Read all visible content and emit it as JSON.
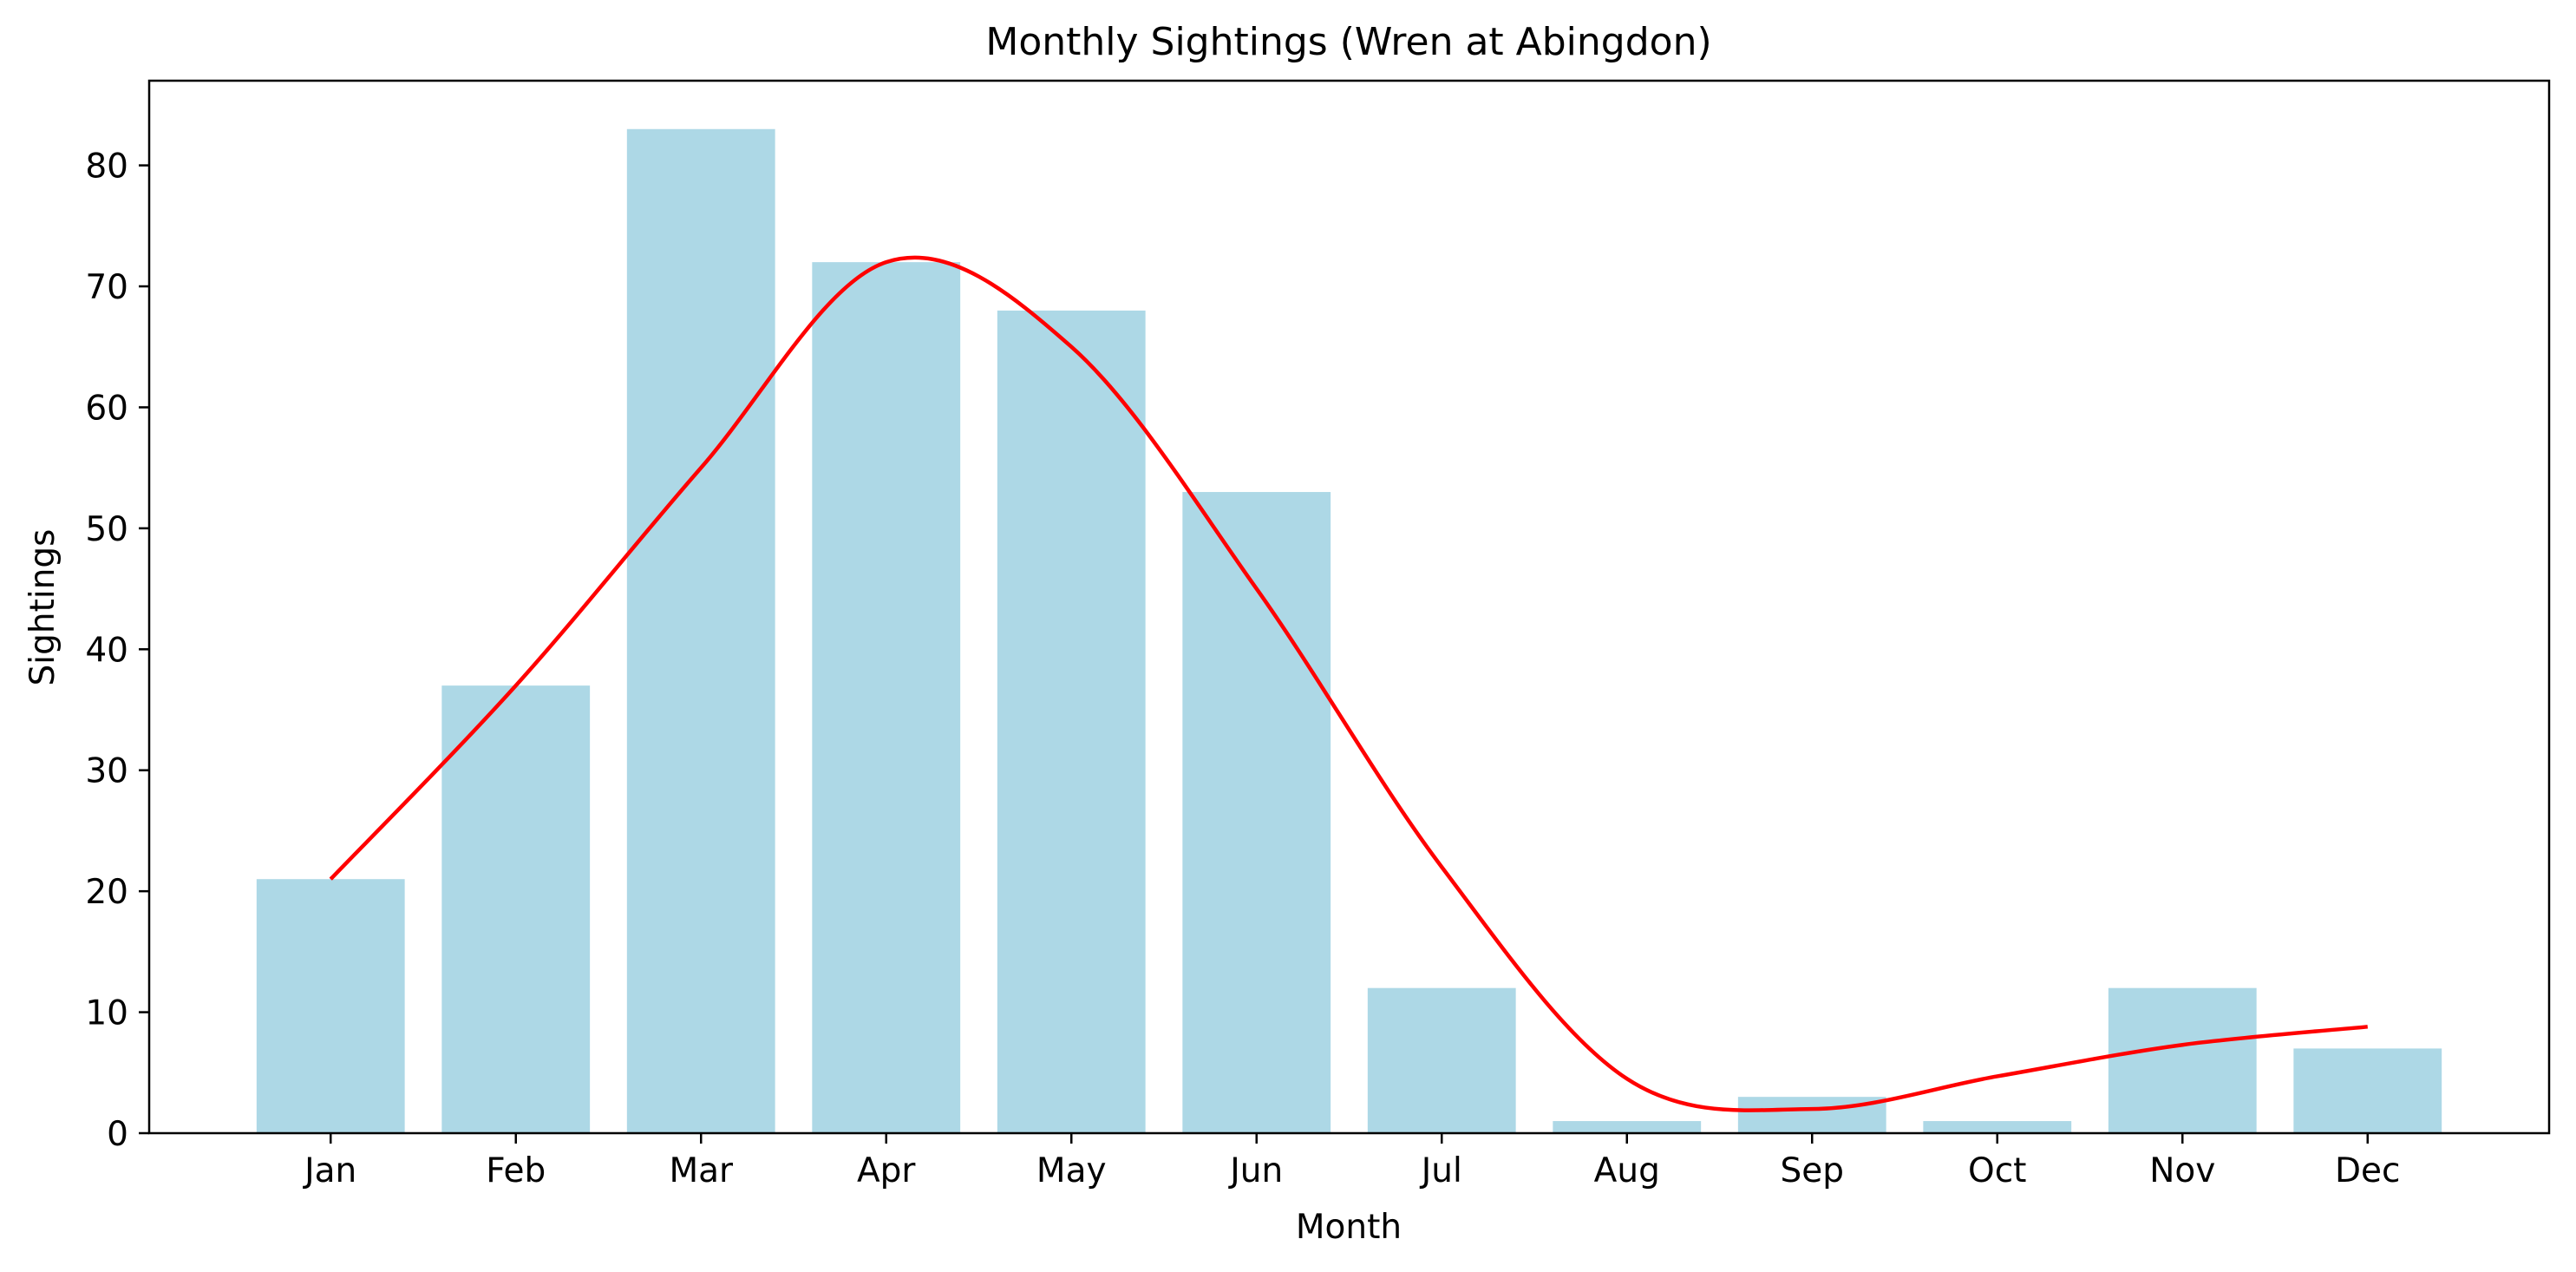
{
  "chart_data": {
    "type": "bar",
    "title": "Monthly Sightings (Wren at Abingdon)",
    "xlabel": "Month",
    "ylabel": "Sightings",
    "categories": [
      "Jan",
      "Feb",
      "Mar",
      "Apr",
      "May",
      "Jun",
      "Jul",
      "Aug",
      "Sep",
      "Oct",
      "Nov",
      "Dec"
    ],
    "values": [
      21,
      37,
      83,
      72,
      68,
      53,
      12,
      1,
      3,
      1,
      12,
      7
    ],
    "trend_line": {
      "type": "line",
      "smooth": true,
      "values": [
        21,
        37,
        55,
        72,
        65,
        45,
        22,
        4.5,
        2,
        4.7,
        7.3,
        8.8
      ]
    },
    "ylim": [
      0,
      87
    ],
    "yticks": [
      0,
      10,
      20,
      30,
      40,
      50,
      60,
      70,
      80
    ],
    "grid": false,
    "legend": "none",
    "colors": {
      "bars": "#add8e6",
      "line": "#ff0000",
      "axes": "#000000"
    }
  }
}
